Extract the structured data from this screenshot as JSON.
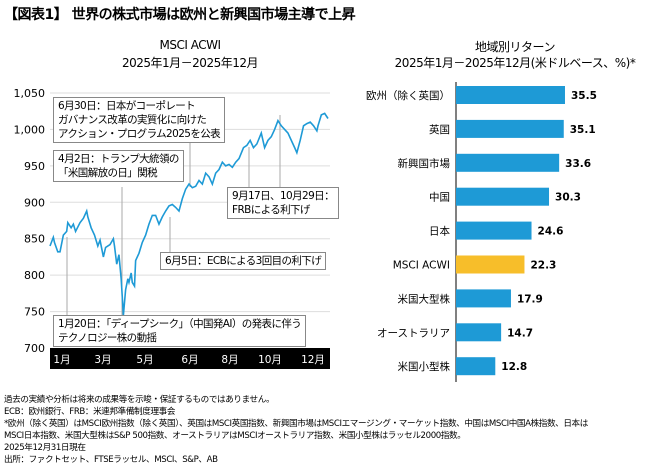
{
  "title": "【図表1】 世界の株式市場は欧州と新興国市場主導で上昇",
  "chart_data": [
    {
      "type": "line",
      "title": "MSCI ACWI",
      "subtitle": "2025年1月－2025年12月",
      "ylim": [
        700,
        1050
      ],
      "yticks": [
        700,
        750,
        800,
        850,
        900,
        950,
        1000,
        1050
      ],
      "ytick_labels": [
        "700",
        "750",
        "800",
        "850",
        "900",
        "950",
        "1,000",
        "1,050"
      ],
      "xtick_labels": [
        "1月",
        "3月",
        "5月",
        "6月",
        "8月",
        "10月",
        "12月"
      ],
      "x_unit": "trading day index",
      "series": [
        {
          "name": "MSCI ACWI",
          "color": "#1e9ad6",
          "x": [
            0,
            3,
            4,
            7,
            9,
            12,
            15,
            16,
            19,
            21,
            23,
            27,
            30,
            33,
            34,
            37,
            40,
            43,
            45,
            48,
            50,
            54,
            57,
            58,
            60,
            62,
            64,
            66,
            68,
            70,
            71,
            73,
            74,
            76,
            77,
            80,
            83,
            86,
            89,
            92,
            95,
            98,
            101,
            104,
            107,
            110,
            113,
            116,
            119,
            122,
            125,
            128,
            131,
            134,
            137,
            140,
            143,
            146,
            149,
            152,
            155,
            158,
            161,
            164,
            167,
            170,
            174,
            177,
            180,
            183,
            186,
            190,
            193,
            196,
            199,
            202,
            205,
            208,
            211,
            214,
            217,
            220,
            222,
            225,
            228,
            231,
            234,
            237,
            240,
            241,
            244,
            247,
            250
          ],
          "y": [
            840,
            852,
            845,
            832,
            832,
            855,
            860,
            872,
            865,
            870,
            860,
            872,
            878,
            888,
            880,
            865,
            855,
            840,
            848,
            825,
            838,
            842,
            850,
            840,
            815,
            828,
            795,
            745,
            780,
            795,
            790,
            803,
            790,
            785,
            820,
            830,
            845,
            855,
            870,
            882,
            882,
            870,
            880,
            888,
            895,
            897,
            893,
            888,
            905,
            918,
            925,
            920,
            922,
            930,
            925,
            940,
            935,
            925,
            940,
            945,
            955,
            950,
            952,
            948,
            955,
            960,
            975,
            978,
            985,
            975,
            980,
            995,
            975,
            985,
            990,
            1000,
            1012,
            1005,
            1000,
            995,
            985,
            975,
            968,
            985,
            1005,
            1008,
            1010,
            1005,
            998,
            1005,
            1020,
            1022,
            1015
          ]
        }
      ],
      "annotations": [
        {
          "text": [
            "6月30日：日本がコーポレート",
            "ガバナンス改革の実質化に向けた",
            "アクション・プログラム2025を公表"
          ]
        },
        {
          "text": [
            "4月2日：トランプ大統領の",
            "「米国解放の日」関税"
          ]
        },
        {
          "text": [
            "9月17日、10月29日：",
            "FRBによる利下げ"
          ]
        },
        {
          "text": [
            "6月5日：ECBによる3回目の利下げ"
          ]
        },
        {
          "text": [
            "1月20日：「ディープシーク」（中国発AI）の発表に伴う",
            "テクノロジー株の動揺"
          ]
        }
      ]
    },
    {
      "type": "bar",
      "orientation": "horizontal",
      "title": "地域別リターン",
      "subtitle": "2025年1月－2025年12月(米ドルベース、%)*",
      "categories": [
        "欧州（除く英国）",
        "英国",
        "新興国市場",
        "中国",
        "日本",
        "MSCI ACWI",
        "米国大型株",
        "オーストラリア",
        "米国小型株"
      ],
      "values": [
        35.5,
        35.1,
        33.6,
        30.3,
        24.6,
        22.3,
        17.9,
        14.7,
        12.8
      ],
      "value_labels": [
        "35.5",
        "35.1",
        "33.6",
        "30.3",
        "24.6",
        "22.3",
        "17.9",
        "14.7",
        "12.8"
      ],
      "colors": {
        "default": "#1e9ad6",
        "highlight": "#f7be2a"
      },
      "highlight": "MSCI ACWI"
    }
  ],
  "notes": [
    "過去の実績や分析は将来の成果等を示唆・保証するものではありません。",
    "ECB：欧州銀行、FRB：米連邦準備制度理事会",
    "*欧州（除く英国）はMSCI欧州指数（除く英国）、英国はMSCI英国指数、新興国市場はMSCIエマージング・マーケット指数、中国はMSCI中国A株指数、日本は",
    "MSCI日本指数、米国大型株はS&P 500指数、オーストラリアはMSCIオーストラリア指数、米国小型株はラッセル2000指数。",
    "2025年12月31日現在",
    "出所：ファクトセット、FTSEラッセル、MSCI、S&P、AB"
  ]
}
